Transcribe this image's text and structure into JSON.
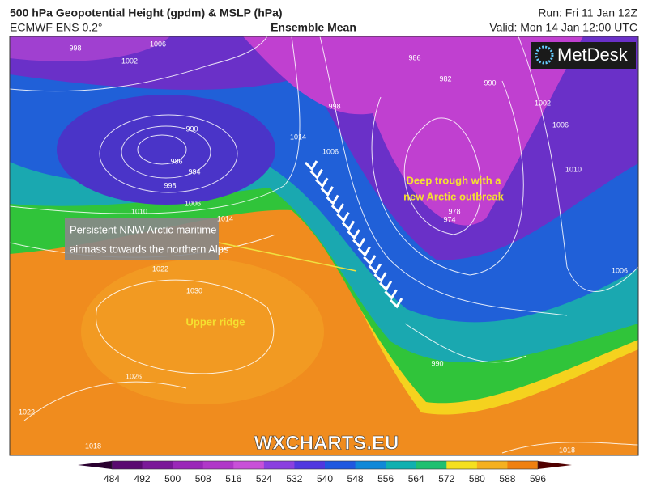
{
  "header": {
    "title": "500 hPa Geopotential Height (gpdm) & MSLP (hPa)",
    "model": "ECMWF ENS 0.2°",
    "product": "Ensemble Mean",
    "run": "Run: Fri 11 Jan 12Z",
    "valid": "Valid: Mon 14 Jan 12:00 UTC"
  },
  "logo": "MetDesk",
  "watermark": "WXCHARTS.EU",
  "annotations": {
    "airmass": [
      "Persistent NNW Arctic maritime",
      "airmass  towards the northern Alps"
    ],
    "trough": [
      "Deep trough with a",
      "new Arctic outbreak"
    ],
    "ridge": "Upper ridge"
  },
  "isobar_labels": [
    "998",
    "1002",
    "1006",
    "990",
    "986",
    "994",
    "998",
    "1006",
    "1010",
    "1014",
    "1022",
    "1030",
    "1026",
    "1022",
    "1018",
    "1014",
    "1006",
    "998",
    "986",
    "982",
    "990",
    "1002",
    "1006",
    "1010",
    "978",
    "974",
    "1006",
    "990",
    "1018"
  ],
  "colorbar": {
    "ticks": [
      484,
      492,
      500,
      508,
      516,
      524,
      532,
      540,
      548,
      556,
      564,
      572,
      580,
      588,
      596
    ],
    "colors": [
      "#2a0030",
      "#5a0a70",
      "#7a1898",
      "#9a28b8",
      "#b038c8",
      "#c850d8",
      "#8a40e0",
      "#5038e0",
      "#2058e0",
      "#1088d8",
      "#10b0b0",
      "#20c070",
      "#f5e020",
      "#f5b020",
      "#f08010",
      "#500000"
    ]
  }
}
